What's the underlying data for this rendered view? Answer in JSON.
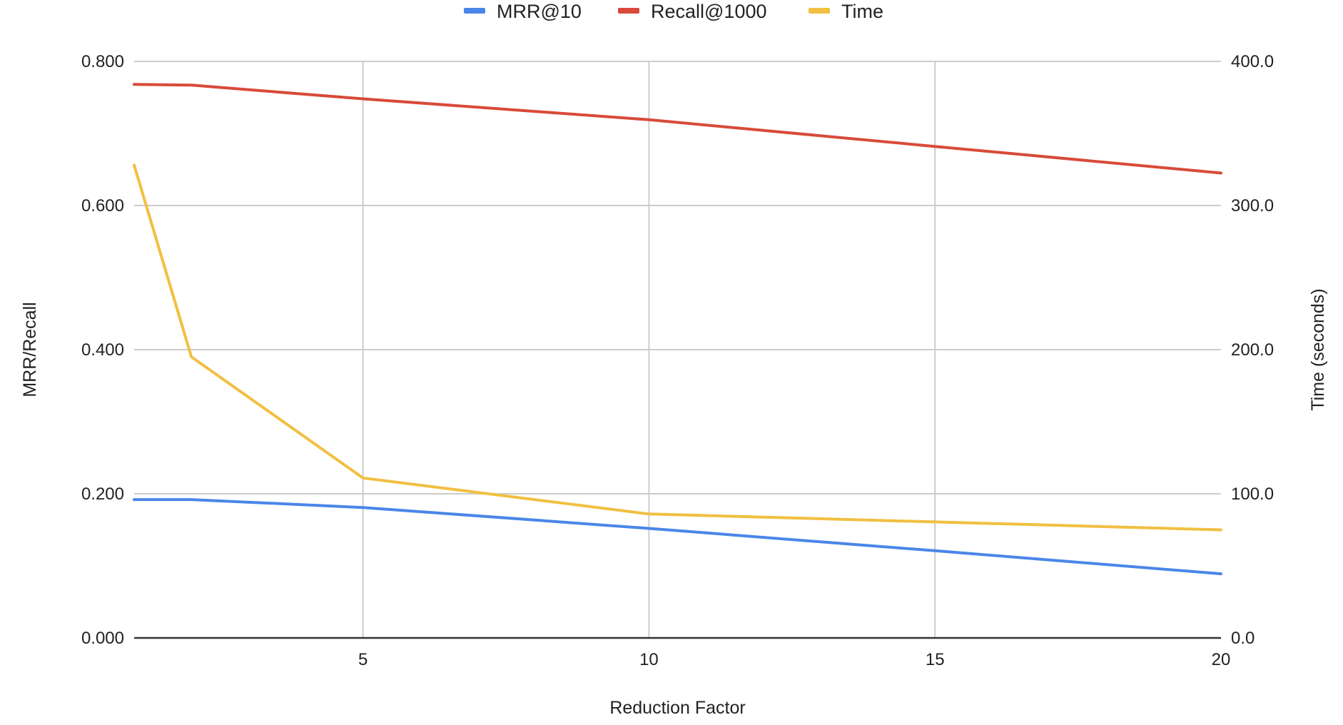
{
  "chart_data": {
    "type": "line",
    "x": [
      1,
      2,
      5,
      10,
      15,
      20
    ],
    "series": [
      {
        "name": "MRR@10",
        "axis": "left",
        "color": "#4a86e8",
        "values": [
          0.192,
          0.192,
          0.181,
          0.152,
          0.121,
          0.089
        ]
      },
      {
        "name": "Recall@1000",
        "axis": "left",
        "color": "#d84a3a",
        "values": [
          0.768,
          0.767,
          0.748,
          0.719,
          0.682,
          0.645
        ]
      },
      {
        "name": "Time",
        "axis": "right",
        "color": "#f1bf42",
        "values": [
          328.0,
          195.0,
          111.0,
          86.0,
          80.5,
          75.0
        ]
      }
    ],
    "xlabel": "Reduction Factor",
    "ylabel": "MRR/Recall",
    "y2label": "Time (seconds)",
    "xlim": [
      1,
      20
    ],
    "ylim": [
      0,
      0.8
    ],
    "y2lim": [
      0,
      400
    ],
    "xticks": [
      5,
      10,
      15,
      20
    ],
    "xtick_labels": [
      "5",
      "10",
      "15",
      "20"
    ],
    "yticks": [
      0,
      0.2,
      0.4,
      0.6,
      0.8
    ],
    "ytick_labels": [
      "0.000",
      "0.200",
      "0.400",
      "0.600",
      "0.800"
    ],
    "y2ticks": [
      0,
      100,
      200,
      300,
      400
    ],
    "y2tick_labels": [
      "0.0",
      "100.0",
      "200.0",
      "300.0",
      "400.0"
    ],
    "grid": true,
    "legend_position": "top-center"
  }
}
